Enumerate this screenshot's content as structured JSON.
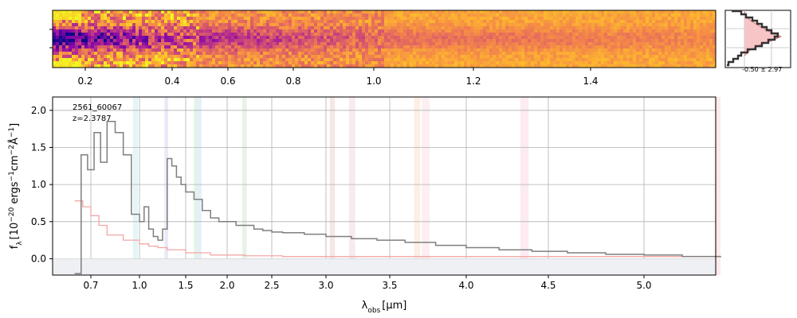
{
  "chart_data": [
    {
      "type": "heatmap",
      "id": "spectrum-2d",
      "x_ticks": [
        "0.2",
        "0.4",
        "0.6",
        "0.8",
        "1.0",
        "1.2",
        "1.4"
      ],
      "x_tick_values": [
        0.2,
        0.4,
        0.6,
        0.8,
        1.0,
        1.2,
        1.4
      ],
      "colormap": "plasma"
    },
    {
      "type": "line",
      "id": "spectrum-1d",
      "annotation": [
        "2561_60067",
        "z=2.3787"
      ],
      "xlabel": "λobs [μm]",
      "ylabel": "fλ [10^-20 ergs^-1cm^-2Å^-1]",
      "xlim": [
        0.53,
        5.4
      ],
      "ylim": [
        -0.22,
        2.18
      ],
      "x_ticks": [
        "0.7",
        "1.0",
        "1.5",
        "2.0",
        "2.5",
        "3.0",
        "3.5",
        "4.0",
        "4.5",
        "5.0"
      ],
      "x_tick_values": [
        0.7,
        1.0,
        1.5,
        2.0,
        2.5,
        3.0,
        3.5,
        4.0,
        4.5,
        5.0
      ],
      "y_ticks": [
        "0.0",
        "0.5",
        "1.0",
        "1.5",
        "2.0"
      ],
      "y_tick_values": [
        0.0,
        0.5,
        1.0,
        1.5,
        2.0
      ],
      "grid": true,
      "series": [
        {
          "color": "#7f7f7f",
          "x": [
            0.6,
            0.64,
            0.68,
            0.72,
            0.76,
            0.8,
            0.85,
            0.9,
            0.95,
            1.0,
            1.05,
            1.1,
            1.15,
            1.2,
            1.25,
            1.3,
            1.35,
            1.4,
            1.45,
            1.5,
            1.6,
            1.7,
            1.8,
            1.9,
            2.0,
            2.1,
            2.2,
            2.3,
            2.4,
            2.5,
            2.6,
            2.8,
            3.0,
            3.2,
            3.4,
            3.6,
            3.8,
            4.0,
            4.2,
            4.4,
            4.6,
            4.8,
            5.0,
            5.2,
            5.4
          ],
          "values": [
            -0.2,
            1.4,
            1.2,
            1.7,
            1.3,
            1.85,
            1.7,
            1.4,
            0.6,
            0.5,
            0.7,
            0.4,
            0.3,
            0.25,
            0.4,
            1.35,
            1.25,
            1.1,
            1.0,
            0.9,
            0.8,
            0.65,
            0.55,
            0.5,
            0.5,
            0.45,
            0.45,
            0.4,
            0.38,
            0.36,
            0.35,
            0.33,
            0.3,
            0.27,
            0.25,
            0.22,
            0.18,
            0.15,
            0.12,
            0.1,
            0.08,
            0.06,
            0.05,
            0.03,
            0.02
          ]
        },
        {
          "color": "#f4a6a6",
          "x": [
            0.6,
            0.65,
            0.7,
            0.75,
            0.8,
            0.9,
            1.0,
            1.1,
            1.2,
            1.3,
            1.5,
            1.8,
            2.2,
            2.6,
            3.0,
            3.5,
            4.0,
            4.5,
            5.0,
            5.4
          ],
          "values": [
            0.78,
            0.7,
            0.58,
            0.45,
            0.32,
            0.25,
            0.2,
            0.17,
            0.15,
            0.12,
            0.08,
            0.05,
            0.04,
            0.03,
            0.03,
            0.03,
            0.03,
            0.03,
            0.03,
            0.03
          ]
        }
      ],
      "shaded_bands": [
        {
          "x": [
            0.96,
            0.99
          ],
          "color": "#7fd3d3"
        },
        {
          "x": [
            1.27,
            1.31
          ],
          "color": "#9b9bd9"
        },
        {
          "x": [
            1.6,
            1.64
          ],
          "color": "#7fcf7f"
        },
        {
          "x": [
            1.64,
            1.69
          ],
          "color": "#8ab8e6"
        },
        {
          "x": [
            2.17,
            2.22
          ],
          "color": "#8ccf8c"
        },
        {
          "x": [
            3.03,
            3.07
          ],
          "color": "#d98f8f"
        },
        {
          "x": [
            3.18,
            3.23
          ],
          "color": "#d9a7a7"
        },
        {
          "x": [
            3.66,
            3.7
          ],
          "color": "#f2b48c"
        },
        {
          "x": [
            3.71,
            3.76
          ],
          "color": "#f0b0c0"
        },
        {
          "x": [
            4.33,
            4.38
          ],
          "color": "#f4a0c8"
        },
        {
          "x": [
            5.37,
            5.4
          ],
          "color": "#f4a0a0"
        }
      ]
    },
    {
      "type": "area",
      "id": "histogram",
      "annotation": "-0.50 ± 2.97",
      "fill_color": "#f7c5c5",
      "line_color": "#333333"
    }
  ]
}
